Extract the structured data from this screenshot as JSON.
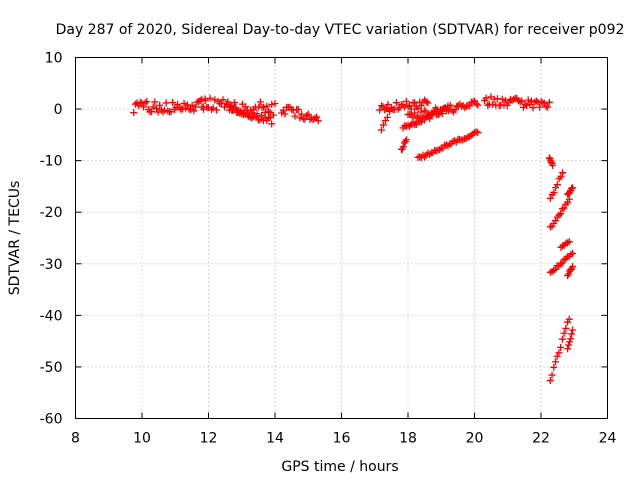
{
  "chart_data": {
    "type": "scatter",
    "title": "Day 287 of 2020, Sidereal Day-to-day VTEC variation (SDTVAR) for receiver p092",
    "xlabel": "GPS time / hours",
    "ylabel": "SDTVAR / TECUs",
    "xlim": [
      8,
      24
    ],
    "ylim": [
      -60,
      10
    ],
    "xticks": [
      "8",
      "10",
      "12",
      "14",
      "16",
      "18",
      "20",
      "22",
      "24"
    ],
    "yticks": [
      "10",
      "0",
      "-10",
      "-20",
      "-30",
      "-40",
      "-50",
      "-60"
    ],
    "grid": true,
    "marker": "plus",
    "color": "#ff0000",
    "tracks": [
      {
        "x_start": 9.75,
        "x_end": 11.9,
        "y_start": 0.4,
        "y_end": 0.6,
        "spread": 2.2
      },
      {
        "x_start": 11.8,
        "x_end": 14.0,
        "y_start": 1.0,
        "y_end": 0.0,
        "spread": 2.5
      },
      {
        "x_start": 12.6,
        "x_end": 13.9,
        "y_start": 0.2,
        "y_end": -2.2,
        "spread": 1.5
      },
      {
        "x_start": 14.2,
        "x_end": 15.3,
        "y_start": 0.0,
        "y_end": -2.0,
        "spread": 2.0
      },
      {
        "x_start": 17.15,
        "x_end": 18.6,
        "y_start": 0.4,
        "y_end": 0.9,
        "spread": 2.0
      },
      {
        "x_start": 17.2,
        "x_end": 17.5,
        "y_start": -3.8,
        "y_end": 0.0,
        "spread": 0.8
      },
      {
        "x_start": 18.0,
        "x_end": 20.1,
        "y_start": -1.5,
        "y_end": 1.1,
        "spread": 1.6
      },
      {
        "x_start": 17.85,
        "x_end": 19.2,
        "y_start": -3.8,
        "y_end": 0.2,
        "spread": 0.9
      },
      {
        "x_start": 17.8,
        "x_end": 17.95,
        "y_start": -8.0,
        "y_end": -6.0,
        "spread": 0.5
      },
      {
        "x_start": 18.3,
        "x_end": 20.1,
        "y_start": -9.6,
        "y_end": -4.4,
        "spread": 0.6
      },
      {
        "x_start": 20.3,
        "x_end": 22.25,
        "y_start": 1.6,
        "y_end": 0.8,
        "spread": 1.8
      },
      {
        "x_start": 22.25,
        "x_end": 22.35,
        "y_start": -9.4,
        "y_end": -10.8,
        "spread": 0.3
      },
      {
        "x_start": 22.28,
        "x_end": 22.65,
        "y_start": -17.5,
        "y_end": -12.2,
        "spread": 0.5
      },
      {
        "x_start": 22.8,
        "x_end": 22.95,
        "y_start": -16.6,
        "y_end": -15.2,
        "spread": 0.3
      },
      {
        "x_start": 22.28,
        "x_end": 22.85,
        "y_start": -23.0,
        "y_end": -17.6,
        "spread": 0.5
      },
      {
        "x_start": 22.6,
        "x_end": 22.85,
        "y_start": -26.8,
        "y_end": -25.6,
        "spread": 0.3
      },
      {
        "x_start": 22.28,
        "x_end": 22.95,
        "y_start": -31.8,
        "y_end": -27.8,
        "spread": 0.5
      },
      {
        "x_start": 22.8,
        "x_end": 22.95,
        "y_start": -32.2,
        "y_end": -30.6,
        "spread": 0.3
      },
      {
        "x_start": 22.28,
        "x_end": 22.85,
        "y_start": -52.5,
        "y_end": -40.5,
        "spread": 0.7
      },
      {
        "x_start": 22.8,
        "x_end": 22.95,
        "y_start": -46.5,
        "y_end": -43.0,
        "spread": 0.4
      }
    ]
  }
}
